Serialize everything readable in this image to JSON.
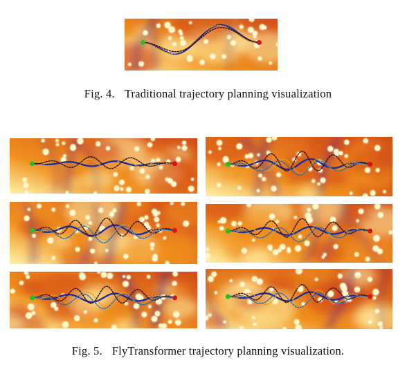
{
  "figures": [
    {
      "label": "Fig. 4.",
      "caption": "Traditional trajectory planning visualization",
      "panels": [
        {
          "name": "traditional-trajectory-map",
          "seed": 4,
          "wave": "big"
        }
      ]
    },
    {
      "label": "Fig. 5.",
      "caption": "FlyTransformer trajectory planning visualization.",
      "panels": [
        {
          "name": "flytransformer-trajectory-map-1",
          "seed": 11,
          "wave": "small"
        },
        {
          "name": "flytransformer-trajectory-map-2",
          "seed": 23,
          "wave": "split"
        },
        {
          "name": "flytransformer-trajectory-map-3",
          "seed": 37,
          "wave": "mid"
        },
        {
          "name": "flytransformer-trajectory-map-4",
          "seed": 51,
          "wave": "split"
        },
        {
          "name": "flytransformer-trajectory-map-5",
          "seed": 63,
          "wave": "split"
        },
        {
          "name": "flytransformer-trajectory-map-6",
          "seed": 79,
          "wave": "split"
        }
      ]
    }
  ],
  "markers": {
    "start_color": "#22c11f",
    "goal_color": "#d9130f"
  },
  "colors": {
    "terrain_low": "#fff3a8",
    "terrain_mid": "#f0901e",
    "terrain_high": "#d24d18",
    "ridge": "#5e2178",
    "obstacle": "#fff8c9",
    "path_main": "#1a2e9e",
    "path_alt": "#e0a020",
    "path_dark": "#3a1010"
  }
}
